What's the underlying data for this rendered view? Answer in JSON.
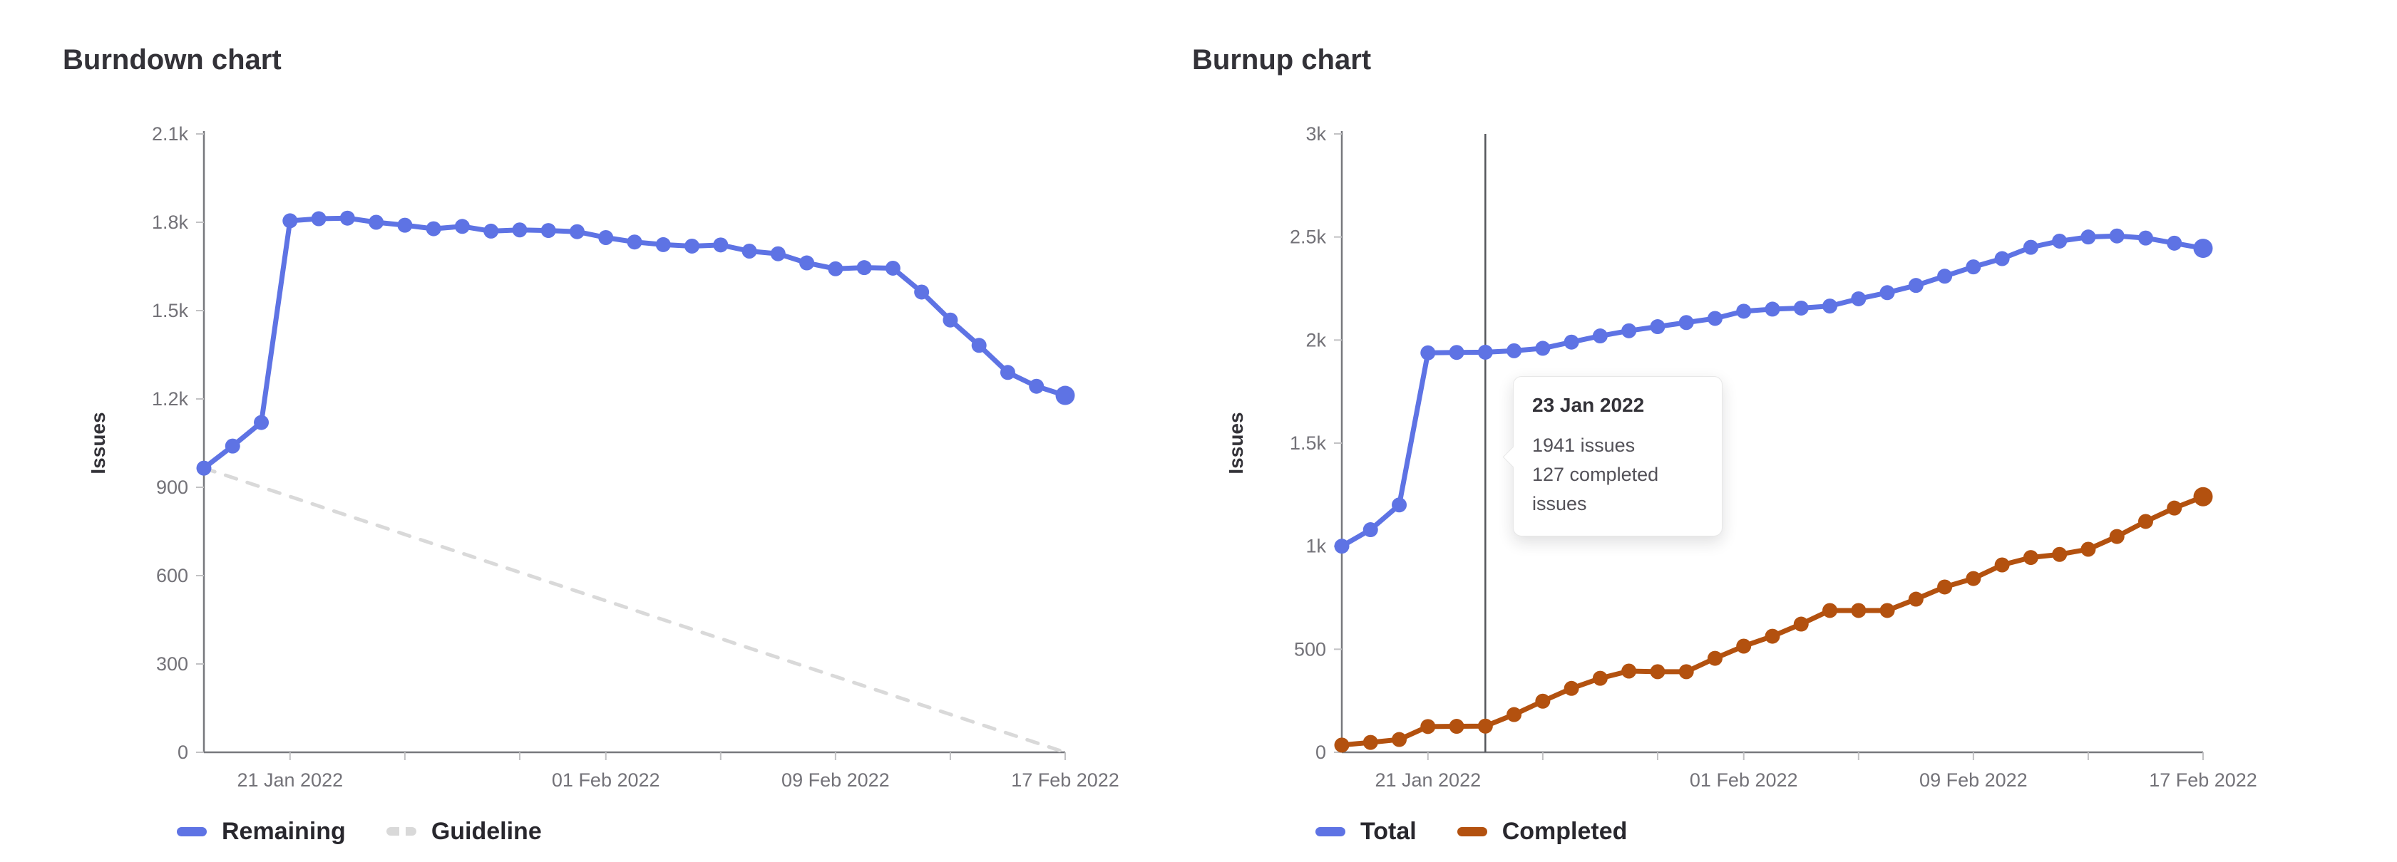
{
  "page": {
    "background": "#ffffff",
    "axis_color": "#77787d",
    "tick_color": "#c2c2c4",
    "tick_label_color": "#737278"
  },
  "chart_data": [
    {
      "type": "line",
      "title": "Burndown chart",
      "ylabel": "Issues",
      "grid": false,
      "legend_position": "bottom-left",
      "x": [
        "18 Jan 2022",
        "19 Jan 2022",
        "20 Jan 2022",
        "21 Jan 2022",
        "22 Jan 2022",
        "23 Jan 2022",
        "24 Jan 2022",
        "25 Jan 2022",
        "26 Jan 2022",
        "27 Jan 2022",
        "28 Jan 2022",
        "29 Jan 2022",
        "30 Jan 2022",
        "31 Jan 2022",
        "01 Feb 2022",
        "02 Feb 2022",
        "03 Feb 2022",
        "04 Feb 2022",
        "05 Feb 2022",
        "06 Feb 2022",
        "07 Feb 2022",
        "08 Feb 2022",
        "09 Feb 2022",
        "10 Feb 2022",
        "11 Feb 2022",
        "12 Feb 2022",
        "13 Feb 2022",
        "14 Feb 2022",
        "15 Feb 2022",
        "16 Feb 2022",
        "17 Feb 2022"
      ],
      "x_tick_indices": [
        3,
        7,
        11,
        14,
        18,
        22,
        26,
        30
      ],
      "x_tick_labels": {
        "3": "21 Jan 2022",
        "14": "01 Feb 2022",
        "22": "09 Feb 2022",
        "30": "17 Feb 2022"
      },
      "ylim": [
        0,
        2100
      ],
      "yticks": [
        0,
        300,
        600,
        900,
        1200,
        1500,
        1800,
        2100
      ],
      "ytick_labels": [
        "0",
        "300",
        "600",
        "900",
        "1.2k",
        "1.5k",
        "1.8k",
        "2.1k"
      ],
      "series": [
        {
          "name": "Remaining",
          "color": "#5e73e4",
          "style": "solid",
          "values": [
            965,
            1040,
            1120,
            1805,
            1812,
            1814,
            1800,
            1790,
            1778,
            1786,
            1770,
            1774,
            1772,
            1768,
            1748,
            1733,
            1724,
            1719,
            1723,
            1702,
            1693,
            1662,
            1642,
            1646,
            1644,
            1563,
            1468,
            1382,
            1290,
            1243,
            1212
          ]
        },
        {
          "name": "Guideline",
          "color": "#d9d9d9",
          "style": "dashed",
          "x_indices": [
            0,
            30
          ],
          "values": [
            965,
            0
          ]
        }
      ]
    },
    {
      "type": "line",
      "title": "Burnup chart",
      "ylabel": "Issues",
      "grid": false,
      "legend_position": "bottom-left",
      "x": [
        "18 Jan 2022",
        "19 Jan 2022",
        "20 Jan 2022",
        "21 Jan 2022",
        "22 Jan 2022",
        "23 Jan 2022",
        "24 Jan 2022",
        "25 Jan 2022",
        "26 Jan 2022",
        "27 Jan 2022",
        "28 Jan 2022",
        "29 Jan 2022",
        "30 Jan 2022",
        "31 Jan 2022",
        "01 Feb 2022",
        "02 Feb 2022",
        "03 Feb 2022",
        "04 Feb 2022",
        "05 Feb 2022",
        "06 Feb 2022",
        "07 Feb 2022",
        "08 Feb 2022",
        "09 Feb 2022",
        "10 Feb 2022",
        "11 Feb 2022",
        "12 Feb 2022",
        "13 Feb 2022",
        "14 Feb 2022",
        "15 Feb 2022",
        "16 Feb 2022",
        "17 Feb 2022"
      ],
      "x_tick_indices": [
        3,
        7,
        11,
        14,
        18,
        22,
        26,
        30
      ],
      "x_tick_labels": {
        "3": "21 Jan 2022",
        "14": "01 Feb 2022",
        "22": "09 Feb 2022",
        "30": "17 Feb 2022"
      },
      "ylim": [
        0,
        3000
      ],
      "yticks": [
        0,
        500,
        1000,
        1500,
        2000,
        2500,
        3000
      ],
      "ytick_labels": [
        "0",
        "500",
        "1k",
        "1.5k",
        "2k",
        "2.5k",
        "3k"
      ],
      "series": [
        {
          "name": "Total",
          "color": "#5e73e4",
          "style": "solid",
          "values": [
            1000,
            1080,
            1200,
            1938,
            1940,
            1941,
            1948,
            1960,
            1990,
            2020,
            2045,
            2065,
            2085,
            2105,
            2140,
            2150,
            2155,
            2165,
            2200,
            2230,
            2265,
            2310,
            2355,
            2395,
            2450,
            2480,
            2500,
            2505,
            2495,
            2470,
            2445
          ]
        },
        {
          "name": "Completed",
          "color": "#b3510f",
          "style": "solid",
          "values": [
            35,
            48,
            62,
            125,
            126,
            127,
            183,
            248,
            310,
            359,
            394,
            391,
            391,
            456,
            515,
            563,
            622,
            688,
            688,
            688,
            743,
            802,
            843,
            909,
            945,
            960,
            985,
            1047,
            1120,
            1185,
            1240
          ]
        }
      ],
      "crosshair": {
        "index": 5,
        "color": "#54565b"
      },
      "tooltip": {
        "title": "23 Jan 2022",
        "line1": "1941 issues",
        "line2": "127 completed issues"
      }
    }
  ]
}
